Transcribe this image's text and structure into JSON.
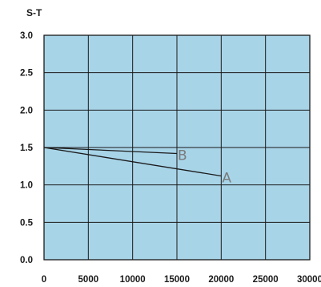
{
  "chart_data": {
    "type": "line",
    "title": "S-T",
    "xlabel": "",
    "ylabel": "",
    "xlim": [
      0,
      30000
    ],
    "ylim": [
      0,
      3.0
    ],
    "x_ticks": [
      "0",
      "5000",
      "10000",
      "15000",
      "20000",
      "25000",
      "30000"
    ],
    "y_ticks": [
      "0.0",
      "0.5",
      "1.0",
      "1.5",
      "2.0",
      "2.5",
      "3.0"
    ],
    "grid": true,
    "legend": "none",
    "plot_background": "#a8d4e8",
    "grid_color": "#1a1a1a",
    "line_color": "#1a1a1a",
    "label_color": "#7a7a7a",
    "series": [
      {
        "name": "A",
        "x": [
          0,
          20000
        ],
        "y": [
          1.5,
          1.12
        ]
      },
      {
        "name": "B",
        "x": [
          0,
          15000
        ],
        "y": [
          1.5,
          1.42
        ]
      }
    ]
  }
}
